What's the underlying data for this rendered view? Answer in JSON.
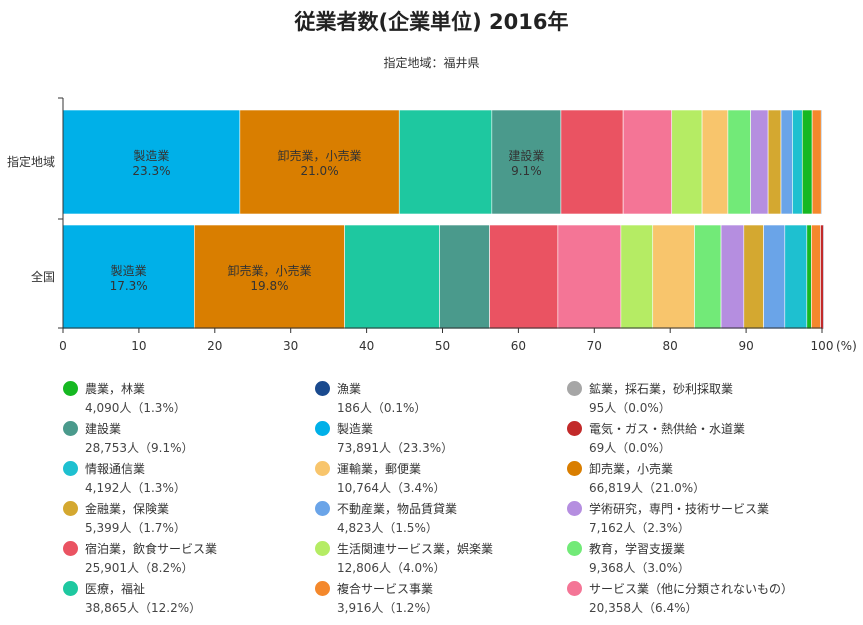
{
  "title": "従業者数(企業単位) 2016年",
  "subtitle": "指定地域：福井県",
  "chart_data": {
    "type": "bar",
    "orientation": "horizontal",
    "stacked": true,
    "categories": [
      "指定地域",
      "全国"
    ],
    "xlim": [
      0,
      100
    ],
    "xticks": [
      "0",
      "10",
      "20",
      "30",
      "40",
      "50",
      "60",
      "70",
      "80",
      "90",
      "100"
    ],
    "x_unit": "(%)",
    "series": [
      {
        "name": "製造業",
        "color": "#00b0e8",
        "values": [
          23.3,
          17.3
        ]
      },
      {
        "name": "卸売業，小売業",
        "color": "#d97e00",
        "values": [
          21.0,
          19.8
        ]
      },
      {
        "name": "医療，福祉",
        "color": "#1ec8a0",
        "values": [
          12.2,
          12.5
        ]
      },
      {
        "name": "建設業",
        "color": "#4a9a8c",
        "values": [
          9.1,
          6.6
        ]
      },
      {
        "name": "宿泊業，飲食サービス業",
        "color": "#ea5362",
        "values": [
          8.2,
          9.0
        ]
      },
      {
        "name": "サービス業（他に分類されないもの）",
        "color": "#f47596",
        "values": [
          6.4,
          8.3
        ]
      },
      {
        "name": "生活関連サービス業，娯楽業",
        "color": "#b5ec64",
        "values": [
          4.0,
          4.2
        ]
      },
      {
        "name": "運輸業，郵便業",
        "color": "#f8c56c",
        "values": [
          3.4,
          5.5
        ]
      },
      {
        "name": "教育，学習支援業",
        "color": "#72ea78",
        "values": [
          3.0,
          3.5
        ]
      },
      {
        "name": "学術研究，専門・技術サービス業",
        "color": "#b58ee0",
        "values": [
          2.3,
          3.0
        ]
      },
      {
        "name": "金融業，保険業",
        "color": "#d4a830",
        "values": [
          1.7,
          2.6
        ]
      },
      {
        "name": "不動産業，物品賃貸業",
        "color": "#6aa4e8",
        "values": [
          1.5,
          2.8
        ]
      },
      {
        "name": "情報通信業",
        "color": "#1ec0d0",
        "values": [
          1.3,
          2.9
        ]
      },
      {
        "name": "農業，林業",
        "color": "#16b822",
        "values": [
          1.3,
          0.6
        ]
      },
      {
        "name": "複合サービス事業",
        "color": "#f4882c",
        "values": [
          1.2,
          1.2
        ]
      },
      {
        "name": "電気・ガス・熱供給・水道業",
        "color": "#c22a2a",
        "values": [
          0.0,
          0.4
        ]
      },
      {
        "name": "漁業",
        "color": "#1a4a8e",
        "values": [
          0.1,
          0.1
        ]
      },
      {
        "name": "鉱業，採石業，砂利採取業",
        "color": "#a6a6a6",
        "values": [
          0.0,
          0.0
        ]
      }
    ],
    "bar_labels": [
      {
        "category": "指定地域",
        "series": "製造業",
        "name": "製造業",
        "value": "23.3%"
      },
      {
        "category": "指定地域",
        "series": "卸売業，小売業",
        "name": "卸売業，小売業",
        "value": "21.0%"
      },
      {
        "category": "指定地域",
        "series": "建設業",
        "name": "建設業",
        "value": "9.1%"
      },
      {
        "category": "全国",
        "series": "製造業",
        "name": "製造業",
        "value": "17.3%"
      },
      {
        "category": "全国",
        "series": "卸売業，小売業",
        "name": "卸売業，小売業",
        "value": "19.8%"
      }
    ],
    "legend": [
      {
        "name": "農業，林業",
        "value": "4,090人（1.3%）",
        "color": "#16b822"
      },
      {
        "name": "漁業",
        "value": "186人（0.1%）",
        "color": "#1a4a8e"
      },
      {
        "name": "鉱業，採石業，砂利採取業",
        "value": "95人（0.0%）",
        "color": "#a6a6a6"
      },
      {
        "name": "建設業",
        "value": "28,753人（9.1%）",
        "color": "#4a9a8c"
      },
      {
        "name": "製造業",
        "value": "73,891人（23.3%）",
        "color": "#00b0e8"
      },
      {
        "name": "電気・ガス・熱供給・水道業",
        "value": "69人（0.0%）",
        "color": "#c22a2a"
      },
      {
        "name": "情報通信業",
        "value": "4,192人（1.3%）",
        "color": "#1ec0d0"
      },
      {
        "name": "運輸業，郵便業",
        "value": "10,764人（3.4%）",
        "color": "#f8c56c"
      },
      {
        "name": "卸売業，小売業",
        "value": "66,819人（21.0%）",
        "color": "#d97e00"
      },
      {
        "name": "金融業，保険業",
        "value": "5,399人（1.7%）",
        "color": "#d4a830"
      },
      {
        "name": "不動産業，物品賃貸業",
        "value": "4,823人（1.5%）",
        "color": "#6aa4e8"
      },
      {
        "name": "学術研究，専門・技術サービス業",
        "value": "7,162人（2.3%）",
        "color": "#b58ee0"
      },
      {
        "name": "宿泊業，飲食サービス業",
        "value": "25,901人（8.2%）",
        "color": "#ea5362"
      },
      {
        "name": "生活関連サービス業，娯楽業",
        "value": "12,806人（4.0%）",
        "color": "#b5ec64"
      },
      {
        "name": "教育，学習支援業",
        "value": "9,368人（3.0%）",
        "color": "#72ea78"
      },
      {
        "name": "医療，福祉",
        "value": "38,865人（12.2%）",
        "color": "#1ec8a0"
      },
      {
        "name": "複合サービス事業",
        "value": "3,916人（1.2%）",
        "color": "#f4882c"
      },
      {
        "name": "サービス業（他に分類されないもの）",
        "value": "20,358人（6.4%）",
        "color": "#f47596"
      }
    ]
  }
}
